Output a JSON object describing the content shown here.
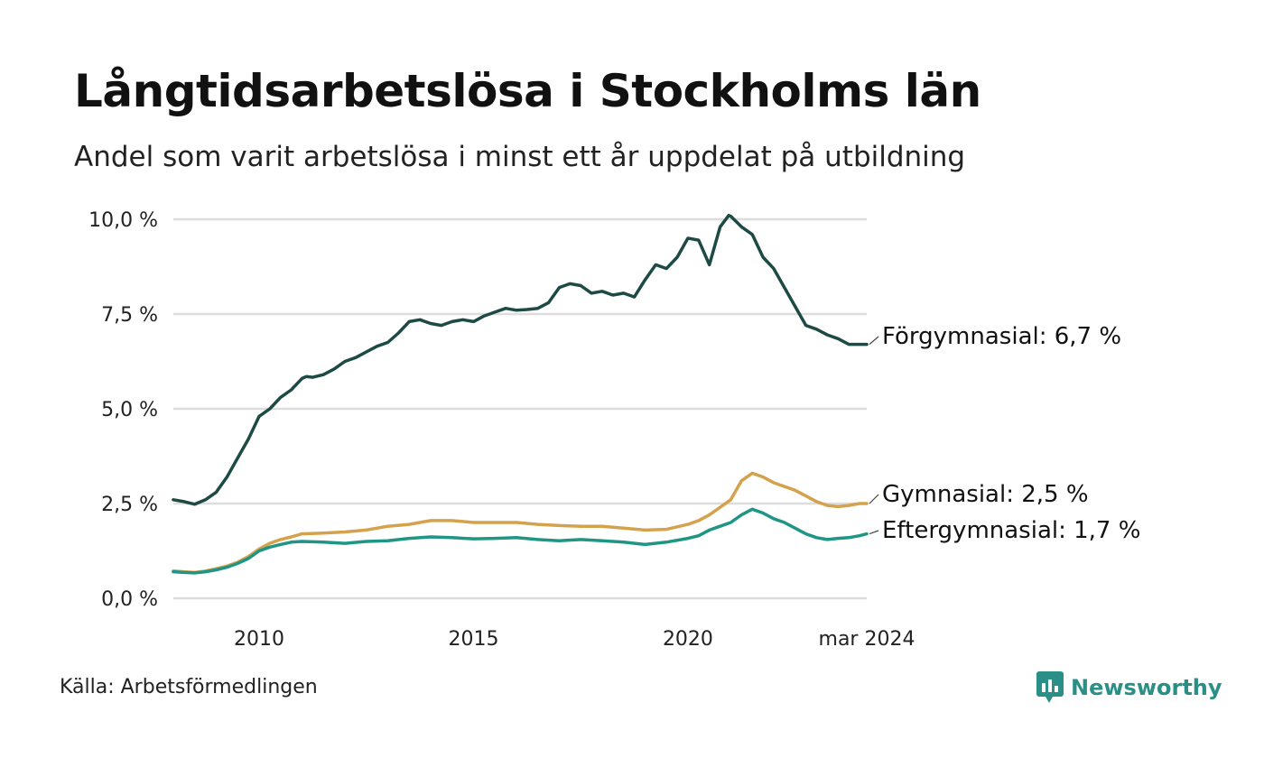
{
  "header": {
    "title": "Långtidsarbetslösa i Stockholms län",
    "subtitle": "Andel som varit arbetslösa i minst ett år uppdelat på utbildning"
  },
  "footer": {
    "source": "Källa: Arbetsförmedlingen",
    "brand": "Newsworthy"
  },
  "colors": {
    "forgymnasial": "#1e4a45",
    "gymnasial": "#d4a24c",
    "eftergymnasial": "#1f9585",
    "grid": "#dddddd",
    "brand": "#2a8f86"
  },
  "icons": {
    "brand_logo": "bar-chart-speech-bubble-icon"
  },
  "chart_data": {
    "type": "line",
    "title": "Långtidsarbetslösa i Stockholms län",
    "subtitle": "Andel som varit arbetslösa i minst ett år uppdelat på utbildning",
    "xlabel": "",
    "ylabel": "",
    "xlim": [
      2008.0,
      2024.17
    ],
    "ylim": [
      0,
      10
    ],
    "yticks": [
      0,
      2.5,
      5,
      7.5,
      10
    ],
    "ytick_labels": [
      "0,0 %",
      "2,5 %",
      "5,0 %",
      "7,5 %",
      "10,0 %"
    ],
    "xticks": [
      2010,
      2015,
      2020,
      2024.17
    ],
    "xtick_labels": [
      "2010",
      "2015",
      "2020",
      "mar 2024"
    ],
    "grid": true,
    "series": [
      {
        "name": "Förgymnasial",
        "end_label": "Förgymnasial: 6,7 %",
        "color": "#1e4a45",
        "x": [
          2008.0,
          2008.25,
          2008.5,
          2008.75,
          2009.0,
          2009.25,
          2009.5,
          2009.75,
          2010.0,
          2010.25,
          2010.5,
          2010.75,
          2011.0,
          2011.1,
          2011.25,
          2011.5,
          2011.75,
          2012.0,
          2012.25,
          2012.5,
          2012.75,
          2013.0,
          2013.25,
          2013.5,
          2013.75,
          2014.0,
          2014.25,
          2014.5,
          2014.75,
          2015.0,
          2015.25,
          2015.5,
          2015.75,
          2016.0,
          2016.25,
          2016.5,
          2016.75,
          2017.0,
          2017.25,
          2017.5,
          2017.75,
          2018.0,
          2018.25,
          2018.5,
          2018.75,
          2019.0,
          2019.25,
          2019.5,
          2019.75,
          2020.0,
          2020.25,
          2020.5,
          2020.75,
          2020.95,
          2021.0,
          2021.25,
          2021.5,
          2021.75,
          2022.0,
          2022.25,
          2022.5,
          2022.75,
          2023.0,
          2023.25,
          2023.5,
          2023.75,
          2024.0,
          2024.17
        ],
        "values": [
          2.6,
          2.55,
          2.48,
          2.6,
          2.8,
          3.2,
          3.7,
          4.2,
          4.8,
          5.0,
          5.3,
          5.5,
          5.8,
          5.85,
          5.83,
          5.9,
          6.05,
          6.25,
          6.35,
          6.5,
          6.65,
          6.75,
          7.0,
          7.3,
          7.35,
          7.25,
          7.2,
          7.3,
          7.35,
          7.3,
          7.45,
          7.55,
          7.65,
          7.6,
          7.62,
          7.65,
          7.8,
          8.2,
          8.3,
          8.25,
          8.05,
          8.1,
          8.0,
          8.05,
          7.95,
          8.4,
          8.8,
          8.7,
          9.0,
          9.5,
          9.45,
          8.8,
          9.8,
          10.1,
          10.08,
          9.8,
          9.6,
          9.0,
          8.7,
          8.2,
          7.7,
          7.2,
          7.1,
          6.95,
          6.85,
          6.7,
          6.7,
          6.7
        ]
      },
      {
        "name": "Gymnasial",
        "end_label": "Gymnasial: 2,5 %",
        "color": "#d4a24c",
        "x": [
          2008.0,
          2008.25,
          2008.5,
          2008.75,
          2009.0,
          2009.25,
          2009.5,
          2009.75,
          2010.0,
          2010.25,
          2010.5,
          2010.75,
          2011.0,
          2011.5,
          2012.0,
          2012.5,
          2013.0,
          2013.5,
          2014.0,
          2014.5,
          2015.0,
          2015.5,
          2016.0,
          2016.5,
          2017.0,
          2017.5,
          2018.0,
          2018.5,
          2019.0,
          2019.5,
          2020.0,
          2020.25,
          2020.5,
          2020.75,
          2021.0,
          2021.25,
          2021.5,
          2021.75,
          2022.0,
          2022.25,
          2022.5,
          2022.75,
          2023.0,
          2023.25,
          2023.5,
          2023.75,
          2024.0,
          2024.17
        ],
        "values": [
          0.72,
          0.7,
          0.68,
          0.72,
          0.78,
          0.85,
          0.95,
          1.1,
          1.3,
          1.45,
          1.55,
          1.62,
          1.7,
          1.72,
          1.75,
          1.8,
          1.9,
          1.95,
          2.05,
          2.05,
          2.0,
          2.0,
          2.0,
          1.95,
          1.92,
          1.9,
          1.9,
          1.85,
          1.8,
          1.82,
          1.95,
          2.05,
          2.2,
          2.4,
          2.6,
          3.1,
          3.3,
          3.2,
          3.05,
          2.95,
          2.85,
          2.7,
          2.55,
          2.45,
          2.42,
          2.45,
          2.5,
          2.5
        ]
      },
      {
        "name": "Eftergymnasial",
        "end_label": "Eftergymnasial: 1,7 %",
        "color": "#1f9585",
        "x": [
          2008.0,
          2008.25,
          2008.5,
          2008.75,
          2009.0,
          2009.25,
          2009.5,
          2009.75,
          2010.0,
          2010.25,
          2010.5,
          2010.75,
          2011.0,
          2011.5,
          2012.0,
          2012.5,
          2013.0,
          2013.5,
          2014.0,
          2014.5,
          2015.0,
          2015.5,
          2016.0,
          2016.5,
          2017.0,
          2017.5,
          2018.0,
          2018.5,
          2019.0,
          2019.5,
          2020.0,
          2020.25,
          2020.5,
          2020.75,
          2021.0,
          2021.25,
          2021.5,
          2021.75,
          2022.0,
          2022.25,
          2022.5,
          2022.75,
          2023.0,
          2023.25,
          2023.5,
          2023.75,
          2024.0,
          2024.17
        ],
        "values": [
          0.7,
          0.68,
          0.67,
          0.7,
          0.75,
          0.82,
          0.92,
          1.05,
          1.25,
          1.35,
          1.42,
          1.48,
          1.5,
          1.48,
          1.45,
          1.5,
          1.52,
          1.58,
          1.62,
          1.6,
          1.57,
          1.58,
          1.6,
          1.55,
          1.52,
          1.55,
          1.52,
          1.48,
          1.42,
          1.48,
          1.58,
          1.65,
          1.8,
          1.9,
          2.0,
          2.2,
          2.35,
          2.25,
          2.1,
          2.0,
          1.85,
          1.7,
          1.6,
          1.55,
          1.58,
          1.6,
          1.65,
          1.7
        ]
      }
    ]
  }
}
